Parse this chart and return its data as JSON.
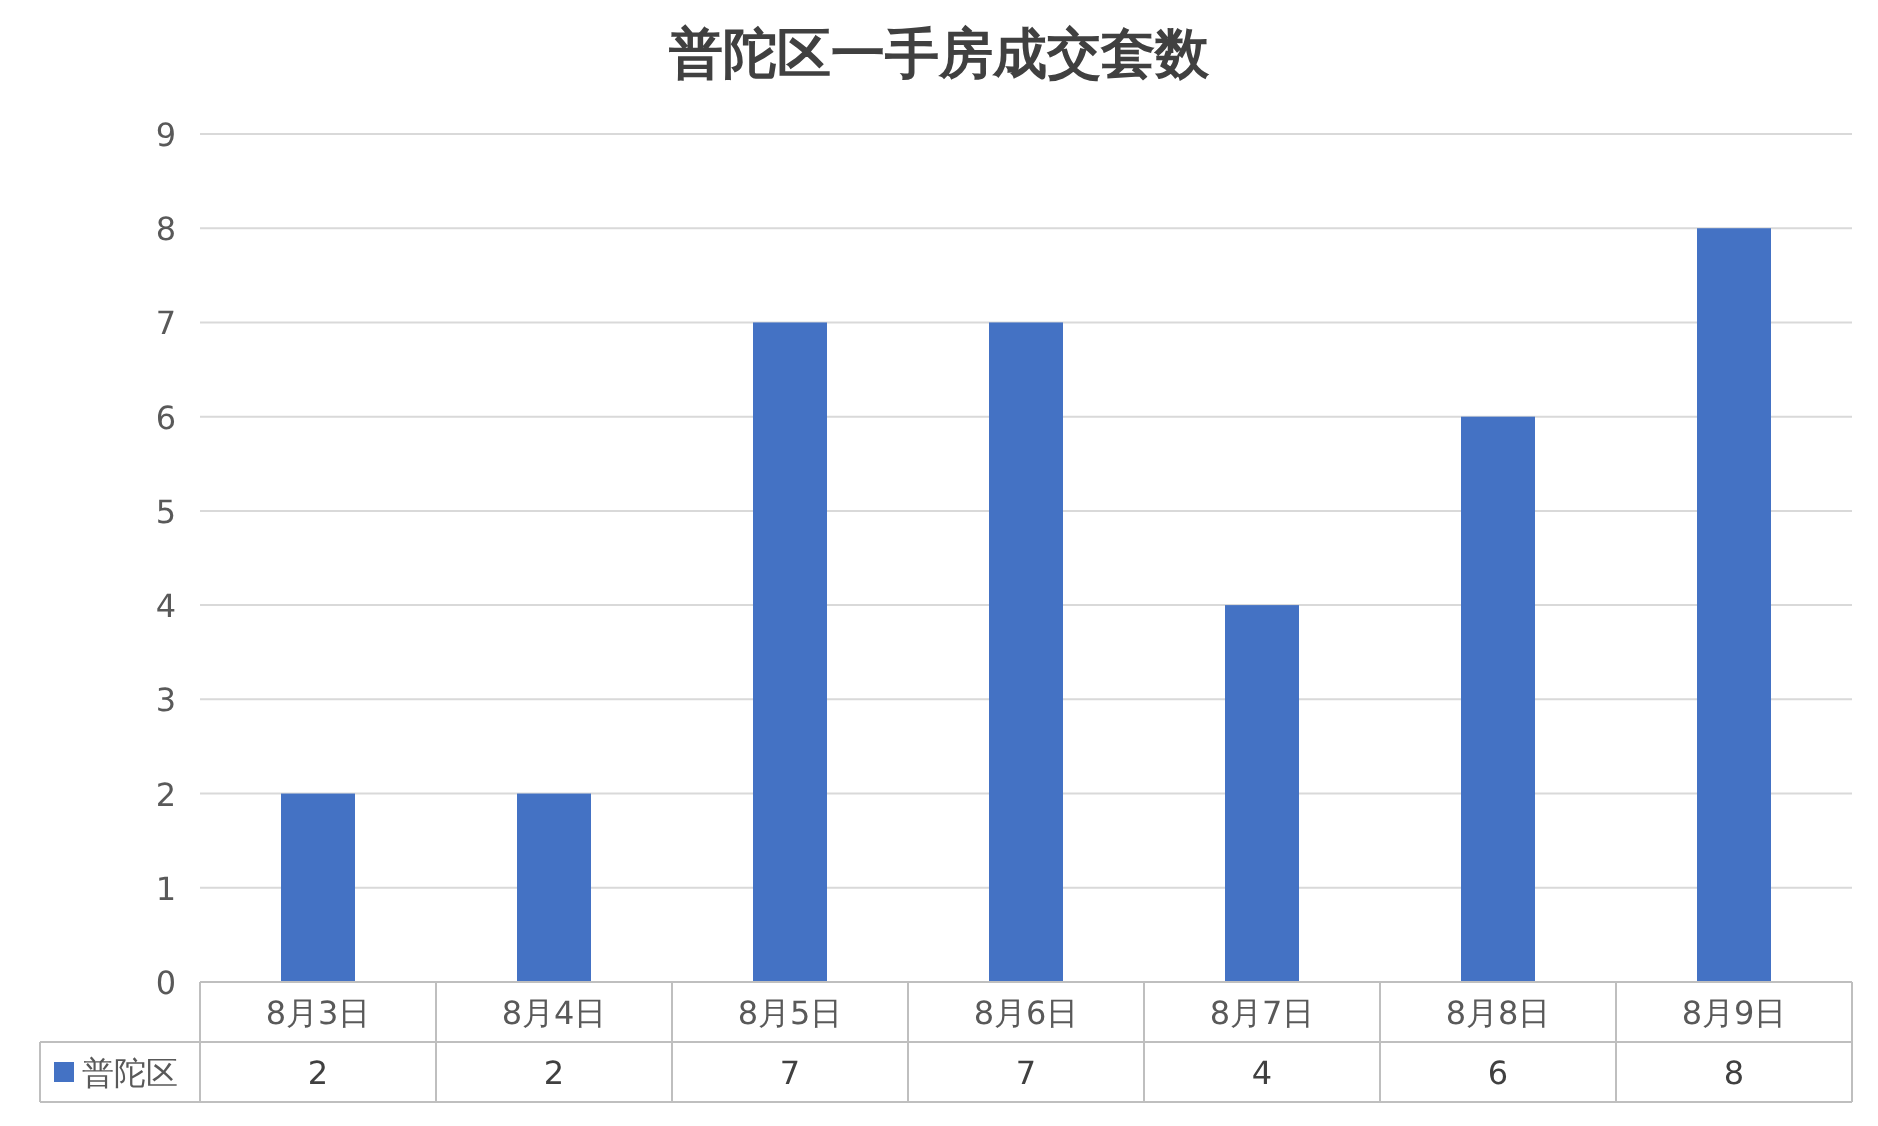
{
  "chart_data": {
    "type": "bar",
    "title": "普陀区一手房成交套数",
    "categories": [
      "8月3日",
      "8月4日",
      "8月5日",
      "8月6日",
      "8月7日",
      "8月8日",
      "8月9日"
    ],
    "series": [
      {
        "name": "普陀区",
        "color": "#4472c4",
        "values": [
          2,
          2,
          7,
          7,
          4,
          6,
          8
        ]
      }
    ],
    "ylim": [
      0,
      9
    ],
    "yticks": [
      0,
      1,
      2,
      3,
      4,
      5,
      6,
      7,
      8,
      9
    ],
    "grid": "y",
    "data_labels": true,
    "legend": "bottom"
  }
}
